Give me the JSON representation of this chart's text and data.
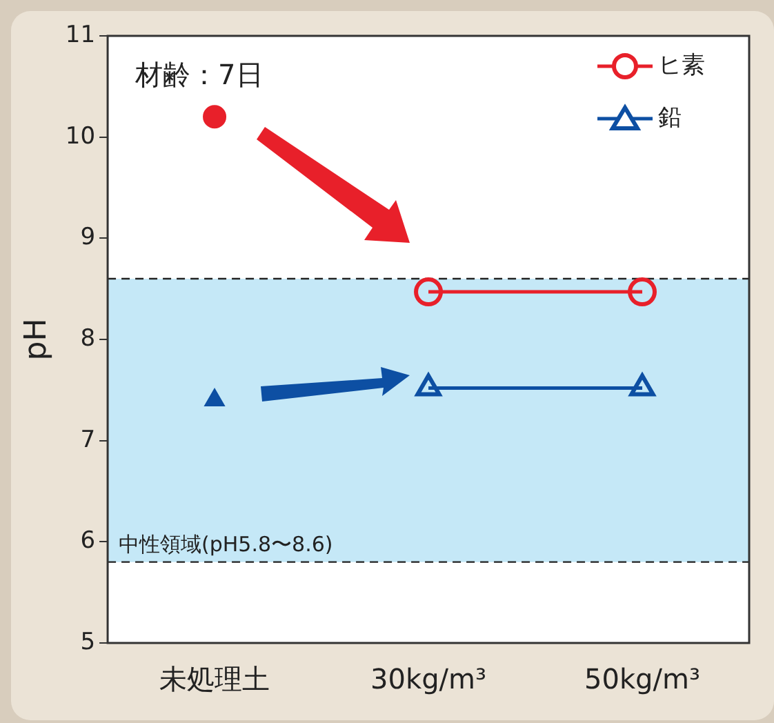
{
  "chart_data": {
    "type": "line",
    "categories": [
      "未処理土",
      "30kg/m³",
      "50kg/m³"
    ],
    "series": [
      {
        "name": "ヒ素",
        "color": "#e8202a",
        "values": [
          null,
          8.47,
          8.47
        ],
        "marker": "circle"
      },
      {
        "name": "鉛",
        "color": "#0d4fa3",
        "values": [
          null,
          7.52,
          7.52
        ],
        "marker": "triangle"
      },
      {
        "type": "scatter",
        "color": "#e8202a",
        "values": [
          10.2,
          null,
          null
        ],
        "marker": "circle"
      },
      {
        "type": "scatter",
        "color": "#0d4fa3",
        "values": [
          7.4,
          null,
          null
        ],
        "marker": "triangle"
      }
    ],
    "ylabel": "pH",
    "ylim": [
      5,
      11
    ],
    "yticks": [
      5,
      6,
      7,
      8,
      9,
      10,
      11
    ],
    "bands": [
      {
        "axis": "y",
        "from": 5.8,
        "to": 8.6,
        "label": "中性領域(pH5.8〜8.6)",
        "color": "#c5e8f7"
      }
    ],
    "ref_lines": [
      {
        "axis": "y",
        "value": 5.8,
        "color": "#222222",
        "line_style": "dashed"
      },
      {
        "axis": "y",
        "value": 8.6,
        "color": "#222222",
        "line_style": "dashed"
      }
    ],
    "annotations": [
      "材齢：7日"
    ],
    "legend": "top right",
    "grid": false
  }
}
